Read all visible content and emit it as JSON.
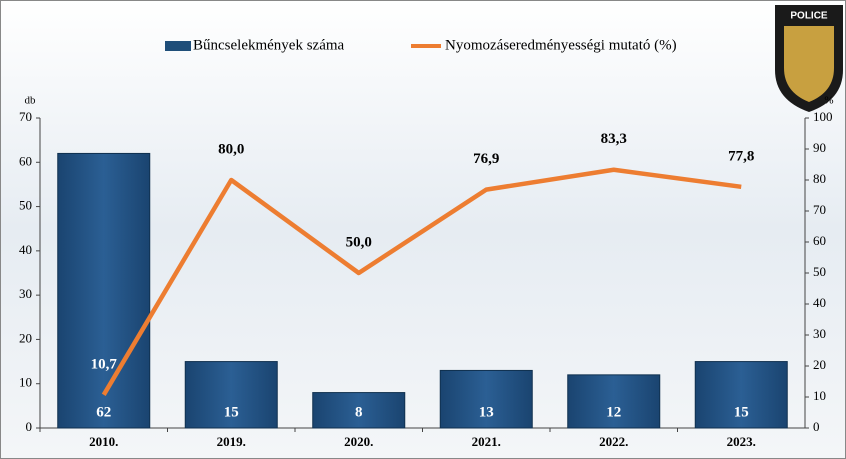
{
  "chart_data": {
    "type": "bar-line",
    "categories": [
      "2010.",
      "2019.",
      "2020.",
      "2021.",
      "2022.",
      "2023."
    ],
    "series": [
      {
        "name": "Bűncselekmények száma",
        "color": "#1f4e79",
        "values": [
          62,
          15,
          8,
          13,
          12,
          15
        ]
      },
      {
        "name": "Nyomozáseredményességi mutató (%)",
        "color": "#ed7d31",
        "axis": "y2",
        "values": [
          10.7,
          80.0,
          50.0,
          76.9,
          83.3,
          77.8
        ],
        "value_labels": [
          "10,7",
          "80,0",
          "50,0",
          "76,9",
          "83,3",
          "77,8"
        ]
      }
    ],
    "ylabel": "db",
    "y2label": "%",
    "ylim": [
      0,
      70
    ],
    "yticks": [
      0,
      10,
      20,
      30,
      40,
      50,
      60,
      70
    ],
    "y2lim": [
      0,
      100
    ],
    "y2ticks": [
      0,
      10,
      20,
      30,
      40,
      50,
      60,
      70,
      80,
      90,
      100
    ],
    "logo_text": "POLICE"
  }
}
